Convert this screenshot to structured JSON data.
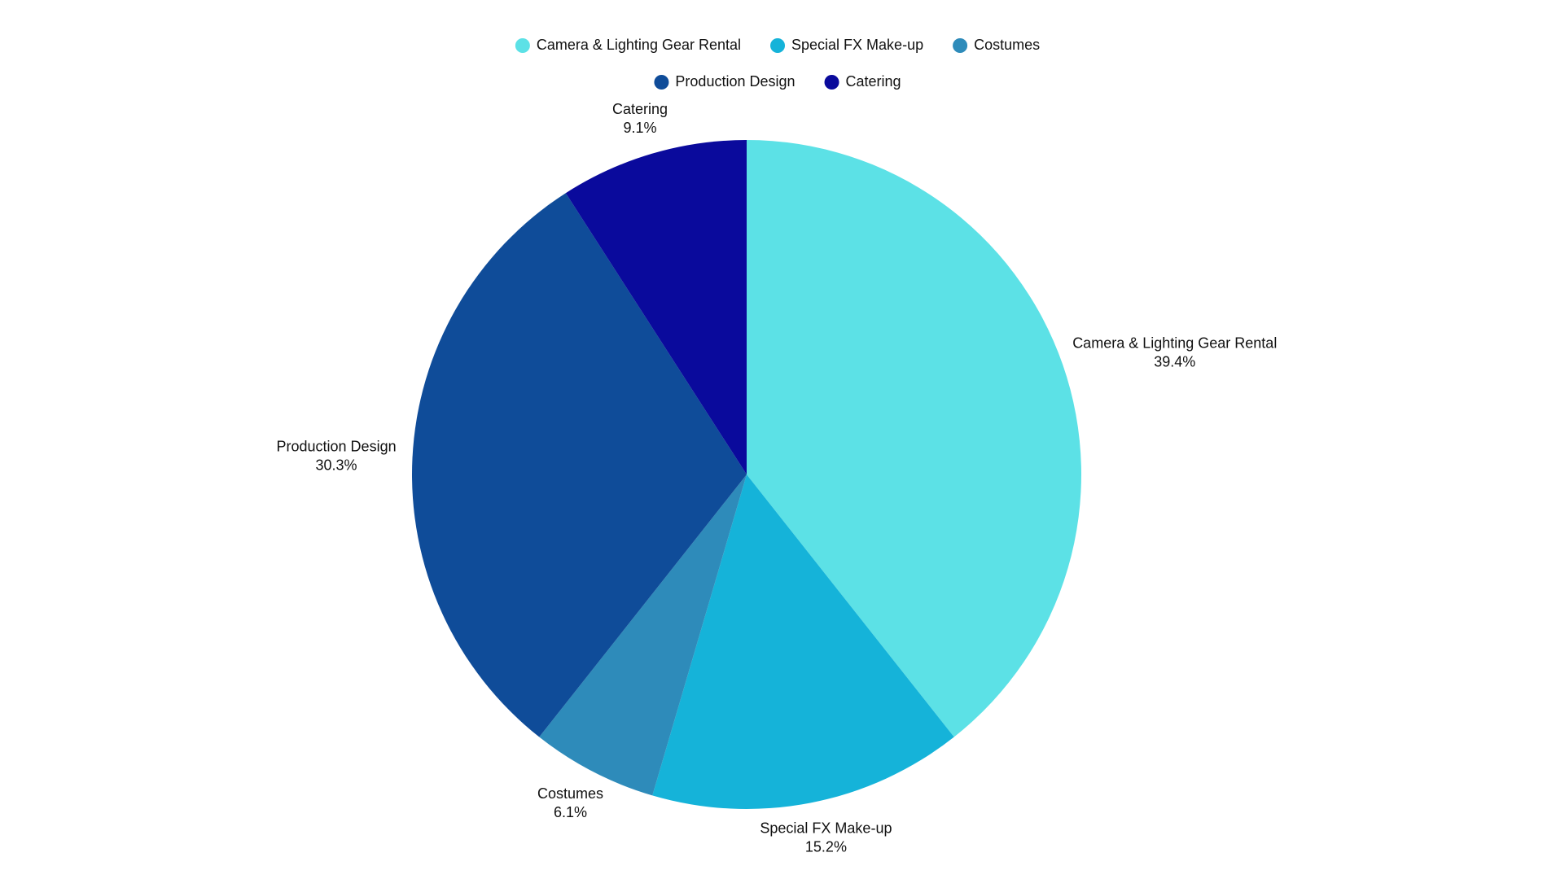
{
  "chart_data": {
    "type": "pie",
    "categories": [
      "Camera & Lighting Gear Rental",
      "Special FX Make-up",
      "Costumes",
      "Production Design",
      "Catering"
    ],
    "values": [
      39.4,
      15.2,
      6.1,
      30.3,
      9.1
    ],
    "value_labels": [
      "39.4%",
      "15.2%",
      "6.1%",
      "30.3%",
      "9.1%"
    ],
    "colors": [
      "#5ce1e6",
      "#15b3d9",
      "#2e8bba",
      "#0f4c99",
      "#0a0a9c"
    ],
    "legend": "top"
  }
}
